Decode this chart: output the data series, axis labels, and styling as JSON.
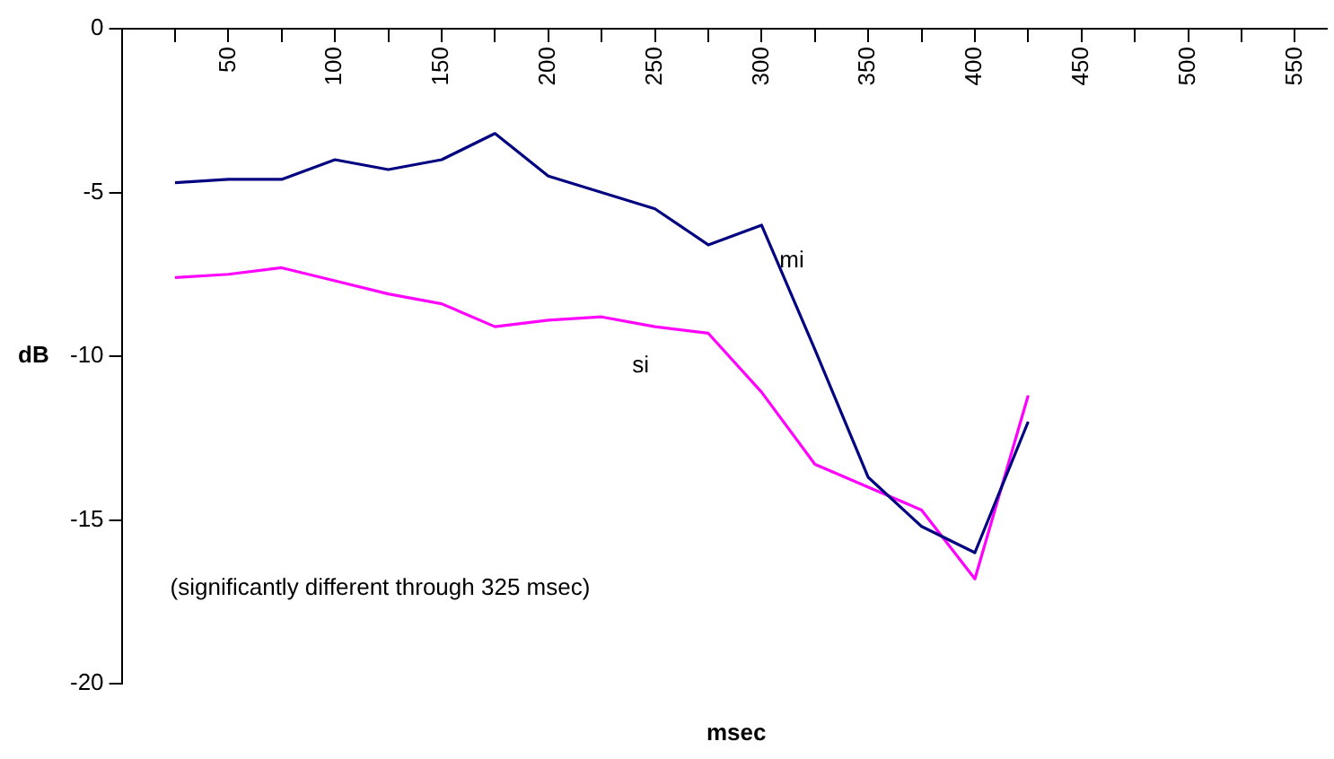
{
  "chart_data": {
    "type": "line",
    "xlabel": "msec",
    "ylabel": "dB",
    "annotations": [
      "(significantly different through 325 msec)"
    ],
    "x": [
      25,
      50,
      75,
      100,
      125,
      150,
      175,
      200,
      225,
      250,
      275,
      300,
      325,
      350,
      375,
      400,
      425
    ],
    "series": [
      {
        "name": "mi",
        "color": "#000080",
        "values": [
          -4.7,
          -4.6,
          -4.6,
          -4.0,
          -4.3,
          -4.0,
          -3.2,
          -4.5,
          -5.0,
          -5.5,
          -6.6,
          -6.0,
          -9.8,
          -13.7,
          -15.2,
          -16.0,
          -12.0
        ]
      },
      {
        "name": "si",
        "color": "#ff00ff",
        "values": [
          -7.6,
          -7.5,
          -7.3,
          -7.7,
          -8.1,
          -8.4,
          -9.1,
          -8.9,
          -8.8,
          -9.1,
          -9.3,
          -11.1,
          -13.3,
          -14.0,
          -14.7,
          -16.8,
          -11.2
        ]
      }
    ],
    "xlim": [
      0,
      565
    ],
    "xticks": [
      {
        "value": 0,
        "label": null
      },
      {
        "value": 25,
        "label": null
      },
      50,
      {
        "value": 75,
        "label": null
      },
      100,
      {
        "value": 125,
        "label": null
      },
      150,
      {
        "value": 175,
        "label": null
      },
      200,
      {
        "value": 225,
        "label": null
      },
      250,
      {
        "value": 275,
        "label": null
      },
      300,
      {
        "value": 325,
        "label": null
      },
      350,
      {
        "value": 375,
        "label": null
      },
      400,
      {
        "value": 425,
        "label": null
      },
      450,
      {
        "value": 475,
        "label": null
      },
      500,
      {
        "value": 525,
        "label": null
      },
      550
    ],
    "ylim": [
      -20,
      0
    ],
    "yticks": [
      0,
      -5,
      -10,
      -15,
      -20
    ],
    "legend": false,
    "grid": false,
    "marker": "none"
  }
}
